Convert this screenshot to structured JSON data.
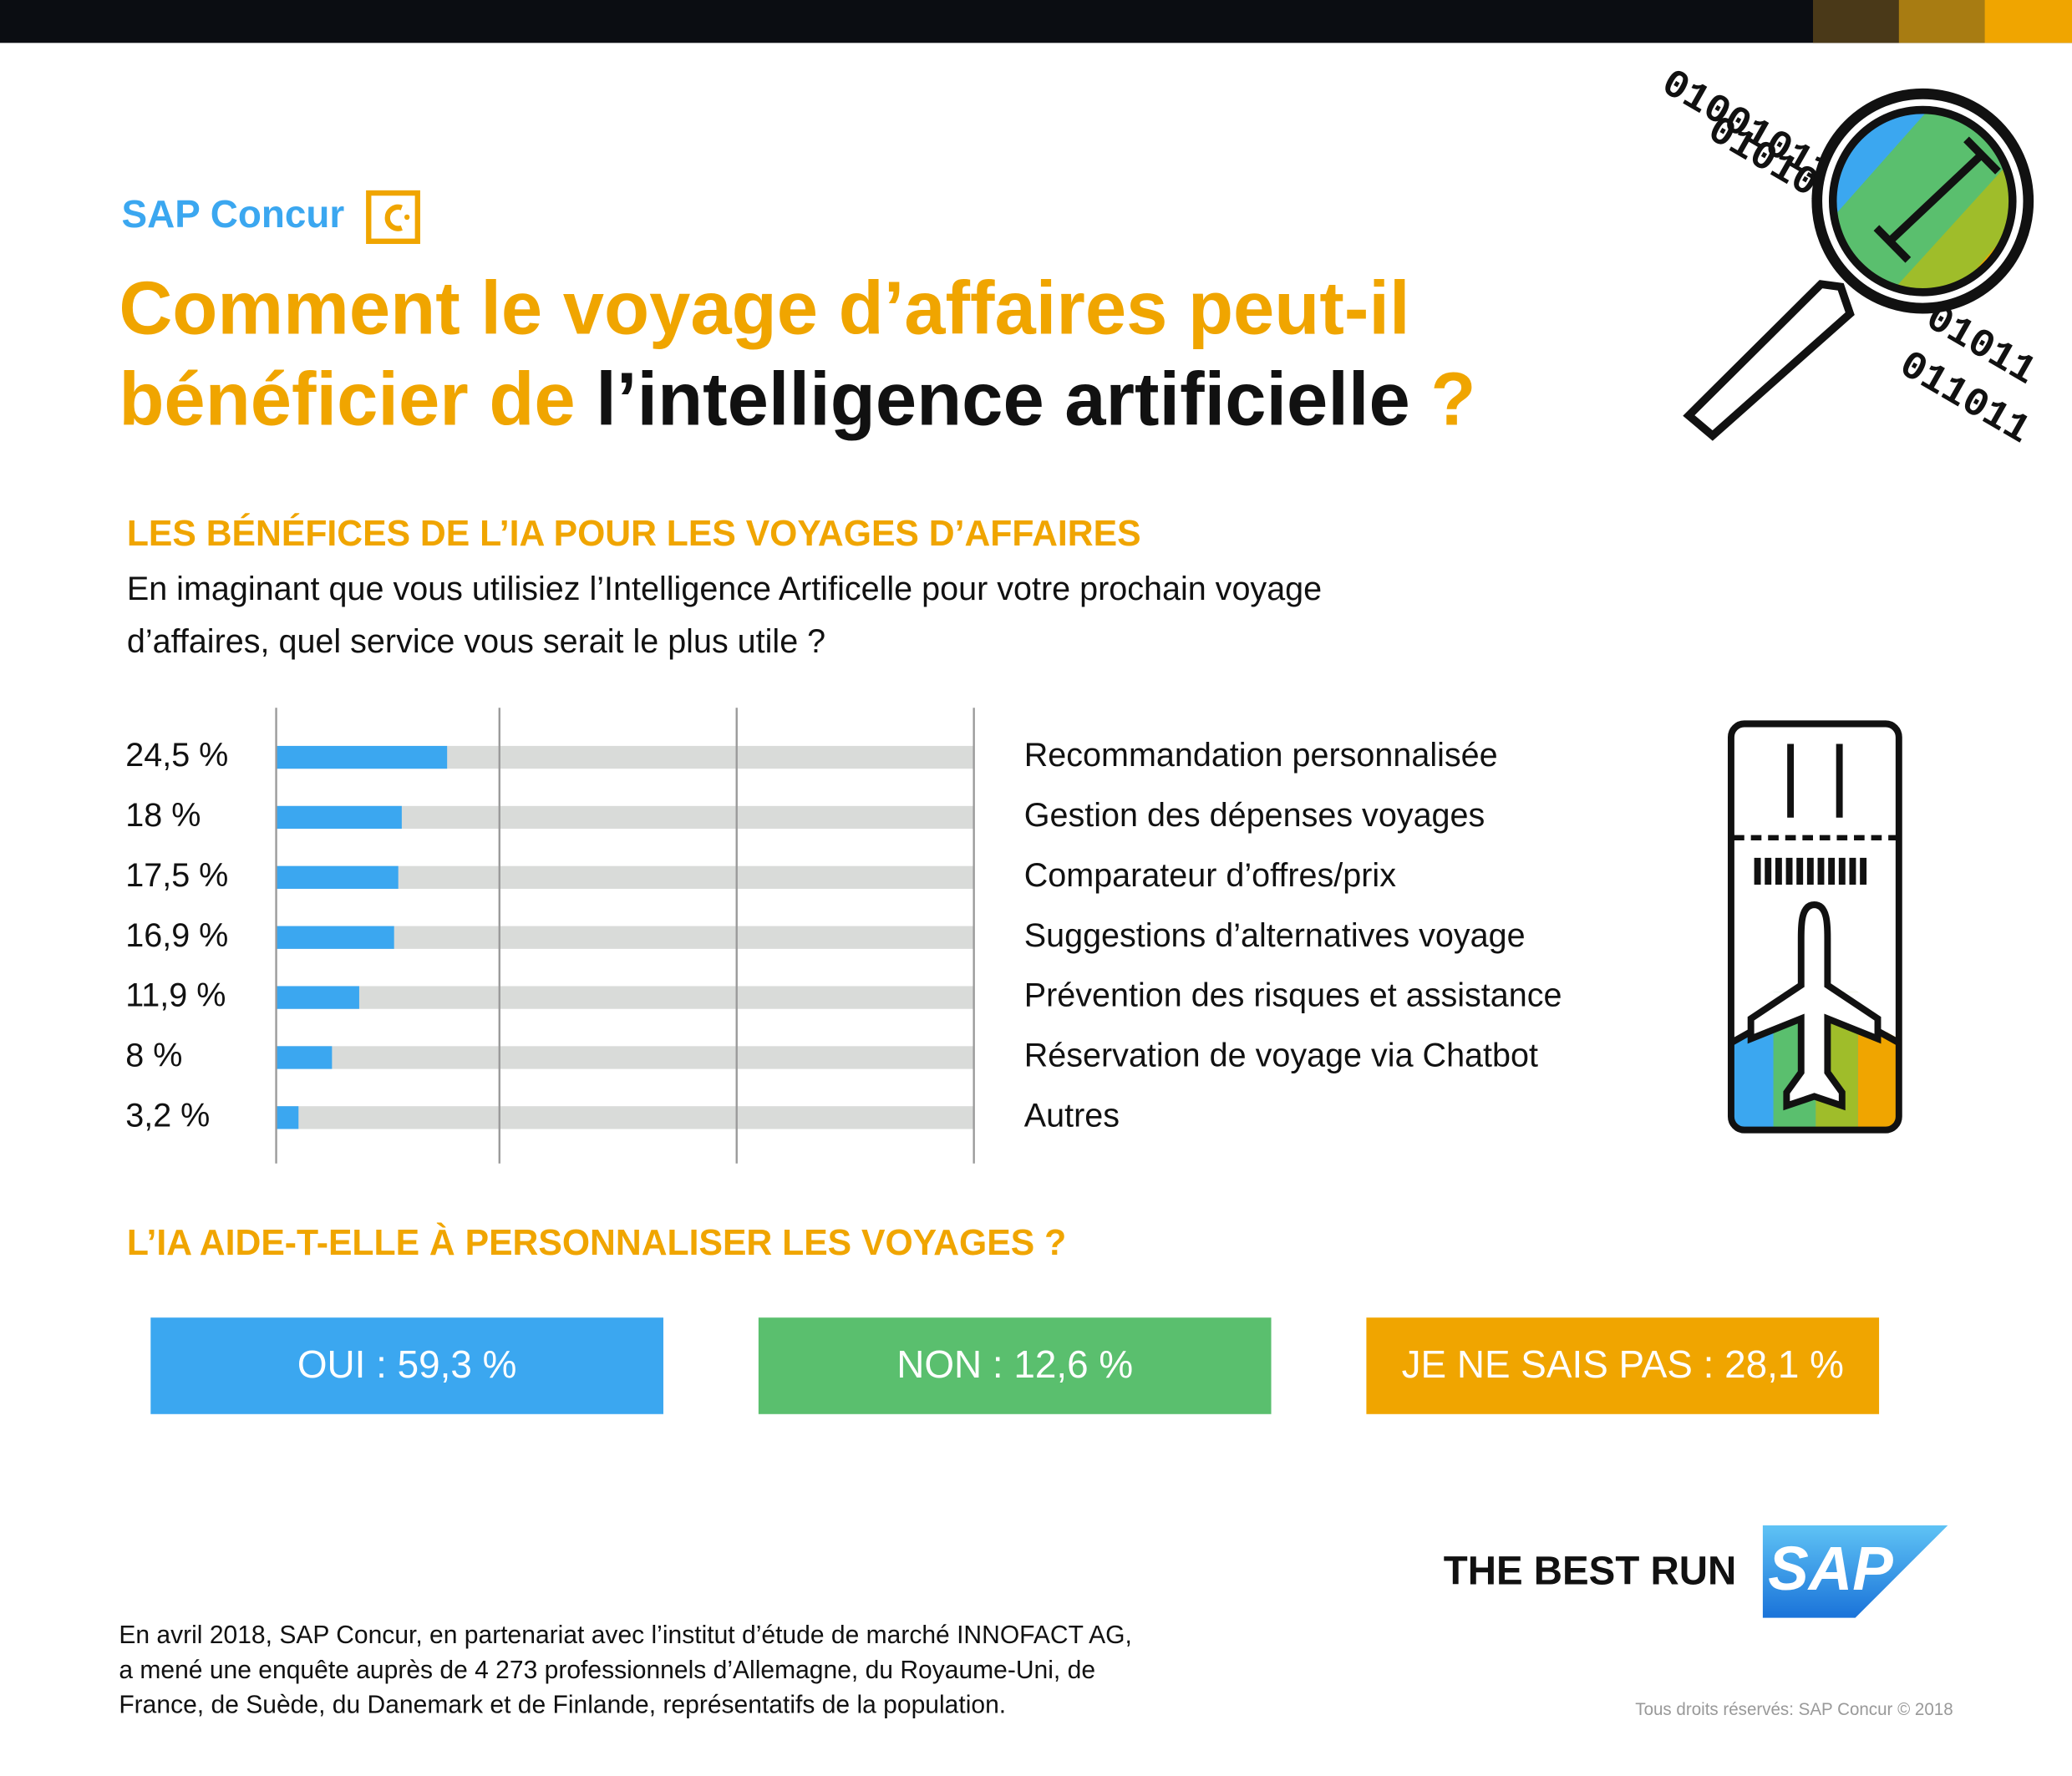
{
  "brand": "SAP Concur",
  "title": {
    "part1": "Comment le voyage d’affaires peut-il",
    "part2": "bénéficier de ",
    "part3": "l’intelligence artificielle",
    "part4": " ?"
  },
  "section1": {
    "heading": "LES BÉNÉFICES DE L’IA POUR LES VOYAGES D’AFFAIRES",
    "question": [
      "En imaginant que vous utilisiez l’Intelligence Artificelle pour votre prochain voyage",
      "d’affaires, quel service vous serait le plus utile ?"
    ]
  },
  "chart_data": {
    "type": "hbar",
    "categories": [
      "Recommandation personnalisée",
      "Gestion des dépenses voyages",
      "Comparateur d’offres/prix",
      "Suggestions d’alternatives voyage",
      "Prévention des risques et assistance",
      "Réservation de voyage via Chatbot",
      "Autres"
    ],
    "values": [
      24.5,
      18,
      17.5,
      16.9,
      11.9,
      8,
      3.2
    ],
    "value_labels": [
      "24,5 %",
      "18 %",
      "17,5 %",
      "16,9 %",
      "11,9 %",
      "8 %",
      "3,2 %"
    ],
    "color": "#3ba7f0",
    "track_color": "#d9dbd9",
    "xlim": [
      0,
      100
    ],
    "xticks": [
      0,
      32,
      66,
      100
    ],
    "grid": true,
    "tick_labels_shown": false
  },
  "section2": {
    "heading": "L’IA AIDE-T-ELLE À PERSONNALISER LES VOYAGES ?",
    "answers": [
      {
        "text": "OUI : 59,3 %",
        "color": "#3ba7f0"
      },
      {
        "text": "NON : 12,6 %",
        "color": "#5abf6e"
      },
      {
        "text": "JE NE SAIS PAS : 28,1 %",
        "color": "#f0a500"
      }
    ]
  },
  "tagline": "THE BEST RUN",
  "logo": "SAP",
  "footnote": [
    "En avril 2018, SAP Concur, en partenariat avec l’institut d’étude de marché INNOFACT AG,",
    "a mené une enquête auprès de 4 273 professionnels d’Allemagne, du Royaume-Uni, de",
    "France, de Suède, du Danemark et de Finlande, représentatifs de la population."
  ],
  "copyright": "Tous droits réservés: SAP Concur © 2018"
}
